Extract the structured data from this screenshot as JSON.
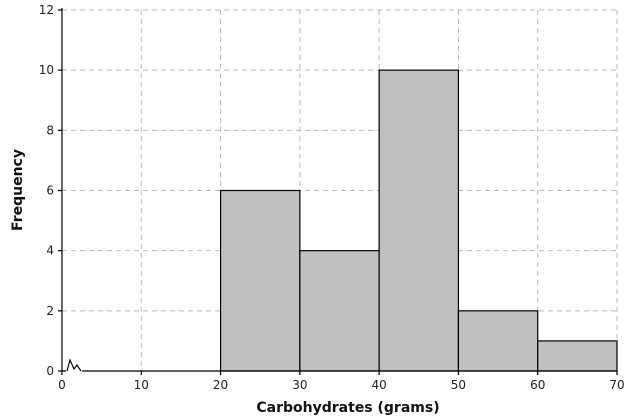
{
  "chart_data": {
    "type": "bar",
    "title": "",
    "xlabel": "Carbohydrates (grams)",
    "ylabel": "Frequency",
    "bins": [
      {
        "from": 20,
        "to": 30,
        "value": 6
      },
      {
        "from": 30,
        "to": 40,
        "value": 4
      },
      {
        "from": 40,
        "to": 50,
        "value": 10
      },
      {
        "from": 50,
        "to": 60,
        "value": 2
      },
      {
        "from": 60,
        "to": 70,
        "value": 1
      }
    ],
    "xlim": [
      0,
      70
    ],
    "ylim": [
      0,
      12
    ],
    "x_ticks": [
      "0",
      "10",
      "20",
      "30",
      "40",
      "50",
      "60",
      "70"
    ],
    "y_ticks": [
      "0",
      "2",
      "4",
      "6",
      "8",
      "10",
      "12"
    ],
    "grid": true,
    "axis_break": "x-axis near origin",
    "colors": {
      "bar_fill": "#c0c0c0",
      "bar_edge": "#000000",
      "grid": "#b9b9b9"
    }
  }
}
